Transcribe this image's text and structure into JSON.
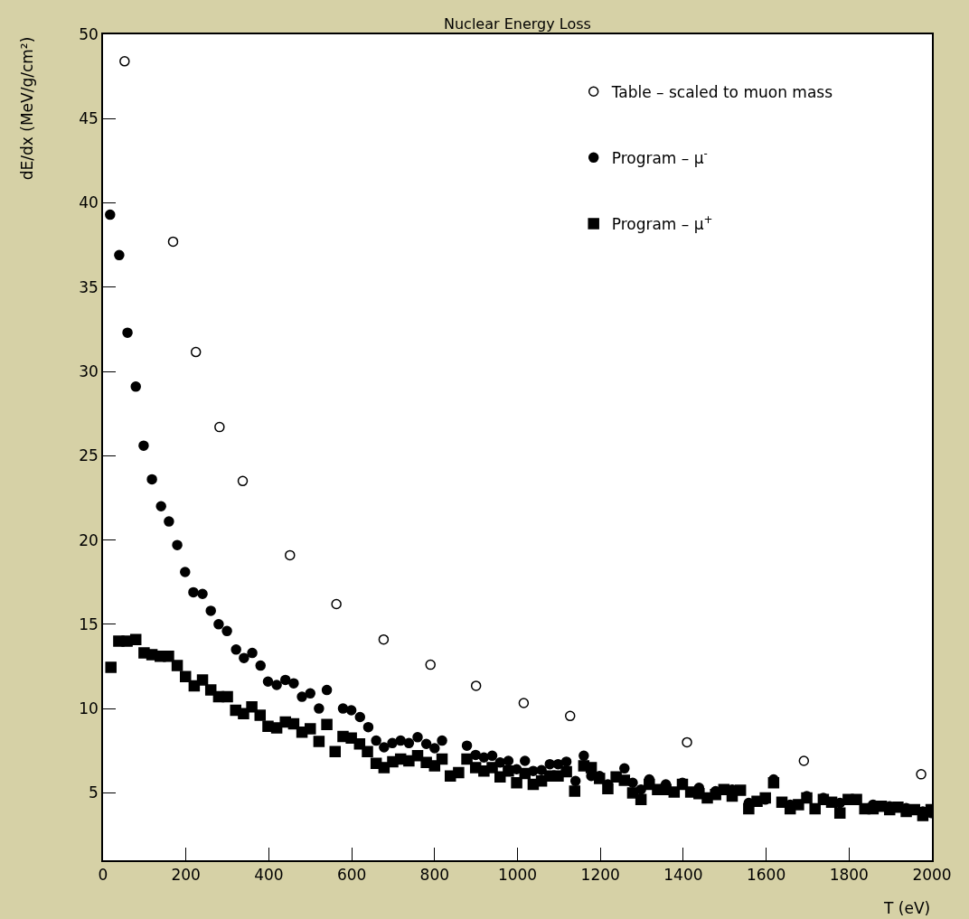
{
  "chart_data": {
    "type": "scatter",
    "title": "Nuclear Energy Loss",
    "xlabel": "T (eV)",
    "ylabel": "dE/dx (MeV/g/cm²)",
    "xlim": [
      0,
      2000
    ],
    "xticks": [
      0,
      200,
      400,
      600,
      800,
      1000,
      1200,
      1400,
      1600,
      1800,
      2000
    ],
    "ylim": [
      1,
      50
    ],
    "yticks": [
      5,
      10,
      15,
      20,
      25,
      30,
      35,
      40,
      45,
      50
    ],
    "legend": "top right",
    "series": [
      {
        "name": "Table – scaled to muon mass",
        "color": "#000000",
        "marker": "circle-open",
        "x": [
          52,
          169,
          224,
          281,
          337,
          451,
          563,
          677,
          790,
          900,
          1015,
          1127,
          1409,
          1691,
          1974
        ],
        "values": [
          48.4,
          37.7,
          31.15,
          26.7,
          23.5,
          19.1,
          16.2,
          14.1,
          12.6,
          11.35,
          10.33,
          9.56,
          8.0,
          6.9,
          6.1
        ]
      },
      {
        "name": "Program – μ$^{-}$",
        "color": "#000000",
        "marker": "circle",
        "x": [
          17,
          39,
          59,
          79,
          98,
          118,
          140,
          159,
          179,
          198,
          218,
          240,
          260,
          279,
          299,
          321,
          340,
          360,
          380,
          398,
          419,
          440,
          460,
          480,
          500,
          521,
          540,
          579,
          599,
          620,
          640,
          659,
          678,
          698,
          718,
          738,
          759,
          780,
          800,
          818,
          878,
          899,
          919,
          939,
          958,
          978,
          998,
          1018,
          1038,
          1058,
          1078,
          1098,
          1118,
          1140,
          1160,
          1178,
          1198,
          1218,
          1238,
          1258,
          1278,
          1298,
          1318,
          1358,
          1398,
          1438,
          1478,
          1518,
          1558,
          1598,
          1618,
          1658,
          1698,
          1738,
          1778,
          1818,
          1858,
          1898,
          1938,
          1978,
          1998
        ],
        "values": [
          39.3,
          36.9,
          32.3,
          29.1,
          25.6,
          23.6,
          22.0,
          21.1,
          19.7,
          18.1,
          16.9,
          16.8,
          15.8,
          15.0,
          14.6,
          13.5,
          13.0,
          13.3,
          12.55,
          11.6,
          11.4,
          11.7,
          11.5,
          10.7,
          10.9,
          10.0,
          11.1,
          10.0,
          9.9,
          9.5,
          8.9,
          8.1,
          7.7,
          7.95,
          8.1,
          7.95,
          8.3,
          7.9,
          7.65,
          8.1,
          7.8,
          7.25,
          7.1,
          7.2,
          6.8,
          6.9,
          6.4,
          6.9,
          6.3,
          6.35,
          6.7,
          6.7,
          6.85,
          5.7,
          7.2,
          6.0,
          6.0,
          5.5,
          null,
          6.45,
          5.6,
          5.2,
          5.8,
          5.5,
          5.6,
          5.3,
          5.1,
          5.2,
          4.4,
          4.6,
          5.8,
          4.3,
          4.8,
          4.7,
          4.4,
          null,
          4.3,
          4.2,
          4.1,
          3.9,
          3.8
        ]
      },
      {
        "name": "Program – μ$^{+}$",
        "color": "#000000",
        "marker": "square",
        "x": [
          19,
          38,
          58,
          79,
          99,
          118,
          138,
          158,
          179,
          199,
          220,
          240,
          260,
          279,
          300,
          320,
          339,
          359,
          379,
          398,
          419,
          440,
          460,
          480,
          500,
          521,
          540,
          560,
          579,
          599,
          619,
          638,
          659,
          678,
          699,
          718,
          738,
          759,
          780,
          800,
          818,
          838,
          858,
          878,
          899,
          919,
          939,
          958,
          978,
          998,
          1018,
          1038,
          1058,
          1078,
          1098,
          1118,
          1138,
          1160,
          1178,
          1198,
          1218,
          1238,
          1258,
          1278,
          1298,
          1318,
          1338,
          1358,
          1378,
          1398,
          1418,
          1438,
          1458,
          1478,
          1498,
          1518,
          1538,
          1558,
          1578,
          1598,
          1618,
          1638,
          1658,
          1678,
          1698,
          1718,
          1738,
          1758,
          1778,
          1798,
          1818,
          1838,
          1858,
          1878,
          1898,
          1918,
          1938,
          1958,
          1978,
          1998
        ],
        "values": [
          12.45,
          14.0,
          14.0,
          14.1,
          13.3,
          13.2,
          13.1,
          13.1,
          12.55,
          11.9,
          11.35,
          11.7,
          11.1,
          10.7,
          10.7,
          9.9,
          9.7,
          10.1,
          9.6,
          8.95,
          8.85,
          9.2,
          9.1,
          8.6,
          8.8,
          8.05,
          9.05,
          7.45,
          8.35,
          8.25,
          7.9,
          7.45,
          6.75,
          6.5,
          6.85,
          7.0,
          6.9,
          7.2,
          6.8,
          6.6,
          7.0,
          6.0,
          6.2,
          7.0,
          6.5,
          6.3,
          6.5,
          5.95,
          6.3,
          5.6,
          6.15,
          5.5,
          5.7,
          6.0,
          6.0,
          6.25,
          5.1,
          6.6,
          6.5,
          5.85,
          5.25,
          5.95,
          5.75,
          5.0,
          4.6,
          5.5,
          5.2,
          5.2,
          5.05,
          5.5,
          5.05,
          4.95,
          4.7,
          4.9,
          5.2,
          4.8,
          5.15,
          4.05,
          4.5,
          4.7,
          5.6,
          4.45,
          4.05,
          4.3,
          4.7,
          4.05,
          4.6,
          4.45,
          3.8,
          4.6,
          4.6,
          4.05,
          4.05,
          4.2,
          4.0,
          4.15,
          3.9,
          4.0,
          3.65,
          4.0
        ]
      }
    ]
  }
}
